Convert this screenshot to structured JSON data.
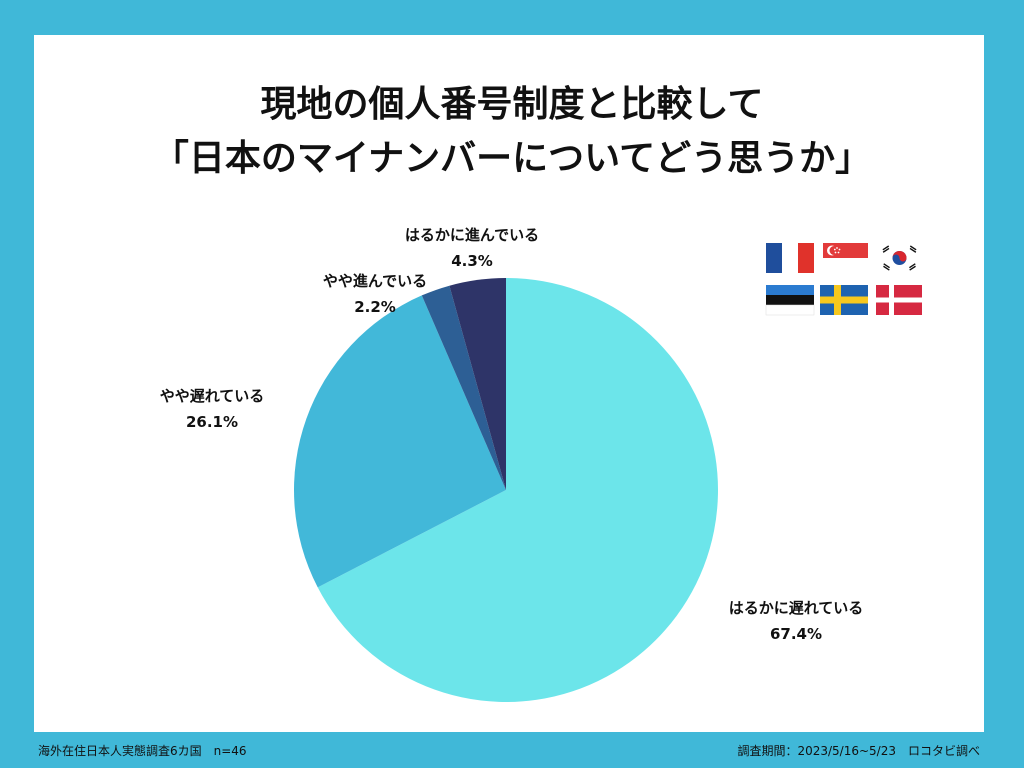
{
  "title": {
    "line1": "現地の個人番号制度と比較して",
    "line2": "「日本のマイナンバーについてどう思うか」"
  },
  "chart_data": {
    "type": "pie",
    "title": "現地の個人番号制度と比較して「日本のマイナンバーについてどう思うか」",
    "start_angle": "12 o'clock",
    "direction": "clockwise",
    "slices": [
      {
        "label": "はるかに遅れている",
        "value": 67.4,
        "display": "67.4%",
        "color": "#6ce5ea"
      },
      {
        "label": "やや遅れている",
        "value": 26.1,
        "display": "26.1%",
        "color": "#42b8d9"
      },
      {
        "label": "やや進んでいる",
        "value": 2.2,
        "display": "2.2%",
        "color": "#2d5f95"
      },
      {
        "label": "はるかに進んでいる",
        "value": 4.3,
        "display": "4.3%",
        "color": "#2e3468"
      }
    ]
  },
  "flags": [
    {
      "country": "France",
      "icon": "france-flag-icon"
    },
    {
      "country": "Singapore",
      "icon": "singapore-flag-icon"
    },
    {
      "country": "South Korea",
      "icon": "south-korea-flag-icon"
    },
    {
      "country": "Estonia",
      "icon": "estonia-flag-icon"
    },
    {
      "country": "Sweden",
      "icon": "sweden-flag-icon"
    },
    {
      "country": "Denmark",
      "icon": "denmark-flag-icon"
    }
  ],
  "footer": {
    "left": "海外在住日本人実態調査6カ国　n=46",
    "right": "調査期間：2023/5/16~5/23　ロコタビ調べ"
  },
  "colors": {
    "background": "#40b8d8",
    "panel": "#ffffff"
  }
}
